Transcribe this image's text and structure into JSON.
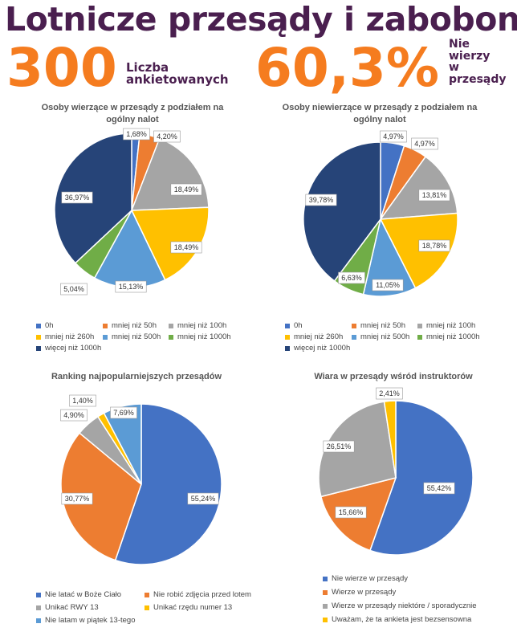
{
  "header": {
    "title": "Lotnicze przesądy i zabobony",
    "stat1": {
      "value": "300",
      "label_lines": [
        "Liczba",
        "ankietowanych"
      ]
    },
    "stat2": {
      "value": "60,3%",
      "label_lines": [
        "Nie",
        "wierzy",
        "w",
        "przesądy"
      ]
    }
  },
  "colors": {
    "blue": "#4472c4",
    "orange": "#ed7d31",
    "gray": "#a5a5a5",
    "yellow": "#ffc000",
    "lightblue": "#5b9bd5",
    "green": "#70ad47",
    "navy": "#264478",
    "title": "#4a1f4f",
    "accent": "#f57c1f"
  },
  "chart_data": [
    {
      "type": "pie",
      "title": "Osoby  wierzące w przesądy z podziałem na ogólny nalot",
      "categories": [
        "0h",
        "mniej niż 50h",
        "mniej niż 100h",
        "mniej niż 260h",
        "mniej niż 500h",
        "mniej niż 1000h",
        "więcej niż 1000h"
      ],
      "values": [
        1.68,
        4.2,
        18.49,
        18.49,
        15.13,
        5.04,
        36.97
      ],
      "labels": [
        "1,68%",
        "4,20%",
        "18,49%",
        "18,49%",
        "15,13%",
        "5,04%",
        "36,97%"
      ],
      "legend": "bottom"
    },
    {
      "type": "pie",
      "title": "Osoby niewierzące w przesądy z podziałem na ogólny nalot",
      "categories": [
        "0h",
        "mniej niż 50h",
        "mniej niż 100h",
        "mniej niż 260h",
        "mniej niż 500h",
        "mniej niż 1000h",
        "więcej niż 1000h"
      ],
      "values": [
        4.97,
        4.97,
        13.81,
        18.78,
        11.05,
        6.63,
        39.78
      ],
      "labels": [
        "4,97%",
        "4,97%",
        "13,81%",
        "18,78%",
        "11,05%",
        "6,63%",
        "39,78%"
      ],
      "legend": "bottom"
    },
    {
      "type": "pie",
      "title": "Ranking najpopularniejszych przesądów",
      "categories": [
        "Nie latać w Boże Ciało",
        "Nie robić zdjęcia przed lotem",
        "Unikać RWY 13",
        "Unikać rzędu numer 13",
        "Nie latam w piątek 13-tego"
      ],
      "values": [
        55.24,
        30.77,
        4.9,
        1.4,
        7.69
      ],
      "labels": [
        "55,24%",
        "30,77%",
        "4,90%",
        "1,40%",
        "7,69%"
      ],
      "legend": "bottom"
    },
    {
      "type": "pie",
      "title": "Wiara w przesądy wśród instruktorów",
      "categories": [
        "Nie wierze w przesądy",
        "Wierze w przesądy",
        "Wierze w przesądy niektóre / sporadycznie",
        "Uważam, że ta ankieta jest bezsensowna"
      ],
      "values": [
        55.42,
        15.66,
        26.51,
        2.41
      ],
      "labels": [
        "55,42%",
        "15,66%",
        "26,51%",
        "2,41%"
      ],
      "legend": "bottom"
    }
  ]
}
